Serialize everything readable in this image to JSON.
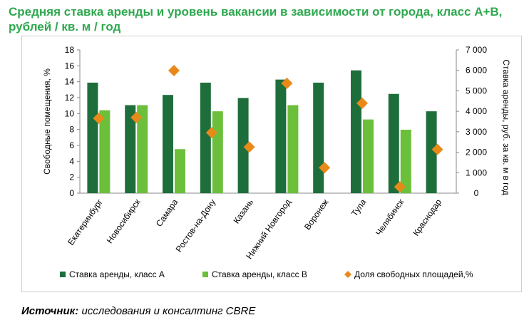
{
  "title": "Средняя ставка аренды  и уровень вакансии в зависимости  от города, класс А+В, рублей / кв. м / год",
  "source": {
    "label": "Источник:",
    "text": "исследования и консалтинг CBRE"
  },
  "colors": {
    "classA": "#1e6e3c",
    "classB": "#6cbf3a",
    "vacancy": "#e88a1a",
    "title": "#2fa84f"
  },
  "chart_data": {
    "type": "bar",
    "categories": [
      "Екатеринбург",
      "Новосибирск",
      "Самара",
      "Ростов-на-Дону",
      "Казань",
      "Нижний Новгород",
      "Воронеж",
      "Тула",
      "Челябинск",
      "Краснодар"
    ],
    "ylabel_left": "Свободные помещения, %",
    "ylabel_right": "Ставка аренды, руб. за кв. м в год",
    "ylim_left": [
      0,
      18
    ],
    "ylim_right": [
      0,
      7000
    ],
    "yticks_left": [
      "0",
      "2",
      "4",
      "6",
      "8",
      "10",
      "12",
      "14",
      "16",
      "18"
    ],
    "yticks_right": [
      "0",
      "1 000",
      "2 000",
      "3 000",
      "4 000",
      "5 000",
      "6 000",
      "7 000"
    ],
    "legend_position": "bottom",
    "series": [
      {
        "name": "Ставка аренды, класс А",
        "type": "bar",
        "axis": "right",
        "color": "#1e6e3c",
        "values": [
          5400,
          4300,
          4800,
          5400,
          4650,
          5550,
          5400,
          6000,
          4850,
          4000
        ]
      },
      {
        "name": "Ставка аренды, класс В",
        "type": "bar",
        "axis": "right",
        "color": "#6cbf3a",
        "values": [
          4050,
          4300,
          2150,
          4000,
          null,
          4300,
          null,
          3600,
          3100,
          null
        ]
      },
      {
        "name": "Доля свободных площадей,%",
        "type": "scatter",
        "axis": "left",
        "color": "#e88a1a",
        "values": [
          9.4,
          9.5,
          15.4,
          7.6,
          5.8,
          13.8,
          3.2,
          11.3,
          0.8,
          5.5
        ]
      }
    ]
  }
}
